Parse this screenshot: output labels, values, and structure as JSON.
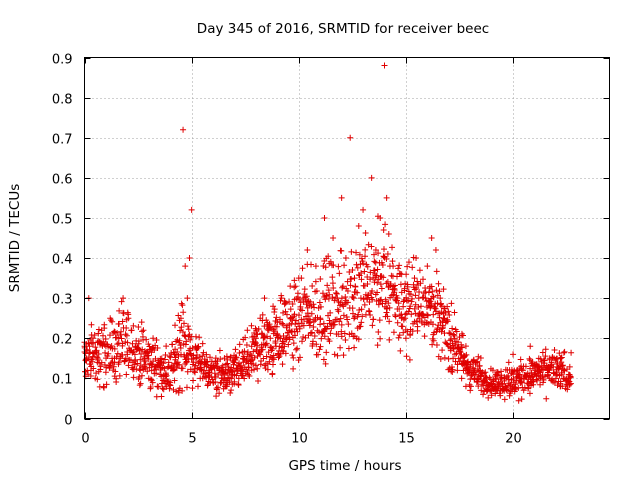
{
  "chart_data": {
    "type": "scatter",
    "title": "Day 345 of 2016, SRMTID for receiver beec",
    "xlabel": "GPS time / hours",
    "ylabel": "SRMTID / TECUs",
    "xlim": [
      0,
      24.5
    ],
    "ylim": [
      0,
      0.9
    ],
    "xticks": [
      0,
      5,
      10,
      15,
      20
    ],
    "xtick_labels": [
      "0",
      "5",
      "10",
      "15",
      "20"
    ],
    "yticks": [
      0,
      0.1,
      0.2,
      0.3,
      0.4,
      0.5,
      0.6,
      0.7,
      0.8,
      0.9
    ],
    "ytick_labels": [
      "0",
      "0.1",
      "0.2",
      "0.3",
      "0.4",
      "0.5",
      "0.6",
      "0.7",
      "0.8",
      "0.9"
    ],
    "grid": true,
    "marker": "+",
    "color": "#e00000",
    "series": [
      {
        "name": "SRMTID",
        "x": [
          0.0,
          0.1,
          0.2,
          0.3,
          0.4,
          0.5,
          0.6,
          0.8,
          1.0,
          1.2,
          1.4,
          1.6,
          1.8,
          2.0,
          2.2,
          2.4,
          2.6,
          2.8,
          3.0,
          3.2,
          3.4,
          3.6,
          3.8,
          4.0,
          4.2,
          4.4,
          4.5,
          4.6,
          4.7,
          4.8,
          4.9,
          5.0,
          5.2,
          5.4,
          5.6,
          5.8,
          6.0,
          6.2,
          6.4,
          6.6,
          6.8,
          7.0,
          7.2,
          7.4,
          7.6,
          7.8,
          8.0,
          8.2,
          8.4,
          8.6,
          8.8,
          9.0,
          9.2,
          9.4,
          9.6,
          9.8,
          10.0,
          10.2,
          10.4,
          10.6,
          10.8,
          11.0,
          11.2,
          11.4,
          11.6,
          11.8,
          12.0,
          12.2,
          12.4,
          12.6,
          12.8,
          13.0,
          13.2,
          13.4,
          13.6,
          13.8,
          14.0,
          14.1,
          14.2,
          14.4,
          14.6,
          14.8,
          15.0,
          15.2,
          15.4,
          15.6,
          15.8,
          16.0,
          16.2,
          16.4,
          16.6,
          16.8,
          17.0,
          17.2,
          17.4,
          17.6,
          17.8,
          18.0,
          18.2,
          18.4,
          18.6,
          18.8,
          19.0,
          19.2,
          19.4,
          19.6,
          19.8,
          20.0,
          20.2,
          20.4,
          20.6,
          20.8,
          21.0,
          21.2,
          21.4,
          21.6,
          21.8,
          22.0,
          22.2,
          22.4,
          22.6
        ],
        "y": [
          0.19,
          0.15,
          0.3,
          0.12,
          0.2,
          0.1,
          0.14,
          0.22,
          0.18,
          0.25,
          0.15,
          0.2,
          0.3,
          0.16,
          0.22,
          0.18,
          0.12,
          0.15,
          0.1,
          0.2,
          0.08,
          0.14,
          0.11,
          0.09,
          0.16,
          0.07,
          0.25,
          0.72,
          0.38,
          0.3,
          0.4,
          0.52,
          0.15,
          0.1,
          0.14,
          0.12,
          0.09,
          0.13,
          0.1,
          0.08,
          0.12,
          0.14,
          0.1,
          0.15,
          0.22,
          0.18,
          0.2,
          0.25,
          0.3,
          0.22,
          0.28,
          0.24,
          0.3,
          0.2,
          0.33,
          0.26,
          0.35,
          0.3,
          0.42,
          0.28,
          0.38,
          0.25,
          0.5,
          0.32,
          0.45,
          0.3,
          0.55,
          0.4,
          0.7,
          0.35,
          0.48,
          0.52,
          0.3,
          0.6,
          0.42,
          0.5,
          0.88,
          0.55,
          0.46,
          0.38,
          0.3,
          0.25,
          0.2,
          0.28,
          0.35,
          0.3,
          0.26,
          0.38,
          0.45,
          0.42,
          0.3,
          0.25,
          0.18,
          0.15,
          0.12,
          0.1,
          0.08,
          0.07,
          0.12,
          0.1,
          0.06,
          0.09,
          0.07,
          0.11,
          0.08,
          0.1,
          0.14,
          0.16,
          0.12,
          0.1,
          0.13,
          0.18,
          0.11,
          0.15,
          0.09,
          0.12,
          0.14,
          0.1,
          0.08,
          0.12,
          0.1
        ]
      }
    ],
    "density_profile": {
      "hours": [
        0,
        1,
        2,
        3,
        4,
        4.5,
        5,
        6,
        7,
        8,
        9,
        10,
        11,
        12,
        13,
        14,
        15,
        16,
        17,
        18,
        19,
        20,
        21,
        22,
        22.7
      ],
      "center": [
        0.15,
        0.16,
        0.18,
        0.14,
        0.11,
        0.2,
        0.15,
        0.11,
        0.11,
        0.17,
        0.21,
        0.24,
        0.26,
        0.28,
        0.31,
        0.33,
        0.28,
        0.3,
        0.21,
        0.12,
        0.09,
        0.09,
        0.11,
        0.12,
        0.11
      ],
      "spread": [
        0.08,
        0.09,
        0.1,
        0.07,
        0.06,
        0.14,
        0.08,
        0.05,
        0.06,
        0.08,
        0.1,
        0.12,
        0.13,
        0.15,
        0.16,
        0.17,
        0.12,
        0.11,
        0.09,
        0.05,
        0.04,
        0.05,
        0.05,
        0.06,
        0.05
      ]
    }
  }
}
